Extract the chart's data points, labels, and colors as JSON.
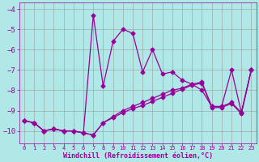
{
  "background_color": "#b0e8e8",
  "grid_color": "#999999",
  "line_color": "#990099",
  "xlim": [
    -0.5,
    23.5
  ],
  "ylim": [
    -10.6,
    -3.7
  ],
  "x": [
    0,
    1,
    2,
    3,
    4,
    5,
    6,
    7,
    8,
    9,
    10,
    11,
    12,
    13,
    14,
    15,
    16,
    17,
    18,
    19,
    20,
    21,
    22,
    23
  ],
  "y_main": [
    -9.5,
    -9.6,
    -10.0,
    -9.9,
    -10.0,
    -10.0,
    -10.1,
    -4.3,
    -7.8,
    -5.6,
    -5.0,
    -5.2,
    -7.1,
    -6.0,
    -7.2,
    -7.1,
    -7.5,
    -7.7,
    -8.0,
    -8.8,
    -8.8,
    -7.0,
    -9.1,
    -7.0
  ],
  "y_line1": [
    -9.5,
    -9.6,
    -10.0,
    -9.9,
    -10.0,
    -10.0,
    -10.1,
    -10.2,
    -9.6,
    -9.3,
    -9.0,
    -8.8,
    -8.6,
    -8.4,
    -8.2,
    -8.0,
    -7.9,
    -7.7,
    -7.6,
    -8.8,
    -8.8,
    -8.6,
    -9.1,
    -7.0
  ],
  "y_line2": [
    -9.5,
    -9.6,
    -10.0,
    -9.9,
    -10.0,
    -10.0,
    -10.1,
    -10.2,
    -9.6,
    -9.35,
    -9.1,
    -8.9,
    -8.75,
    -8.55,
    -8.35,
    -8.15,
    -7.95,
    -7.75,
    -7.65,
    -8.85,
    -8.85,
    -8.65,
    -9.15,
    -7.0
  ],
  "xticks": [
    0,
    1,
    2,
    3,
    4,
    5,
    6,
    7,
    8,
    9,
    10,
    11,
    12,
    13,
    14,
    15,
    16,
    17,
    18,
    19,
    20,
    21,
    22,
    23
  ],
  "yticks": [
    -10,
    -9,
    -8,
    -7,
    -6,
    -5,
    -4
  ],
  "xlabel": "Windchill (Refroidissement éolien,°C)"
}
